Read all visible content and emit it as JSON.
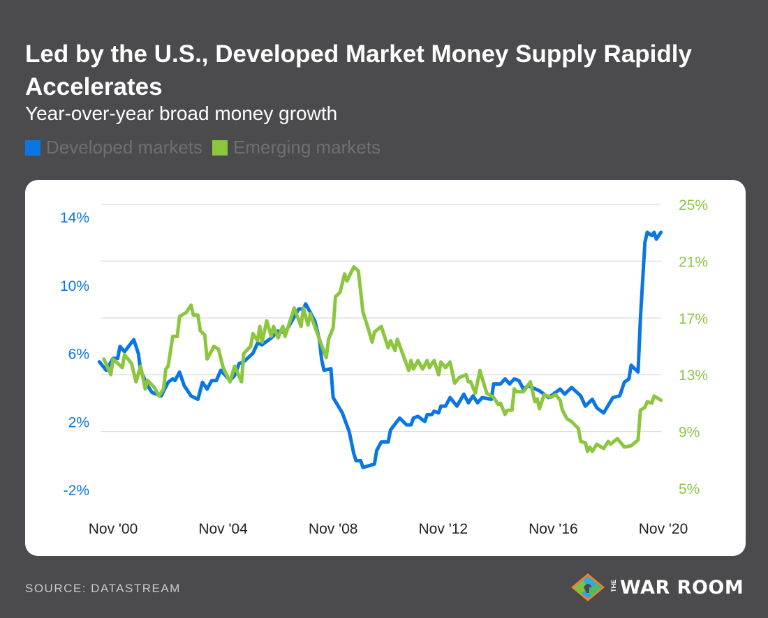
{
  "title": "Led by the U.S., Developed Market Money Supply Rapidly Accelerates",
  "subtitle": "Year-over-year broad money growth",
  "source": "SOURCE: DATASTREAM",
  "logo": {
    "the": "THE",
    "name": "WAR ROOM"
  },
  "colors": {
    "background": "#4b4b4d",
    "developed": "#0a76e3",
    "emerging": "#8cc63f",
    "grid": "#dddddd",
    "legend_text": "#6f6f70"
  },
  "chart_data": {
    "type": "line",
    "title": "Led by the U.S., Developed Market Money Supply Rapidly Accelerates",
    "subtitle": "Year-over-year broad money growth",
    "legend": {
      "placement": "top-left",
      "entries": [
        "Developed markets",
        "Emerging markets"
      ]
    },
    "grid": true,
    "x_ticks": [
      "Nov '00",
      "Nov '04",
      "Nov '08",
      "Nov '12",
      "Nov '16",
      "Nov '20"
    ],
    "x_range": [
      "2000-05",
      "2020-11"
    ],
    "y_left": {
      "ticks": [
        "14%",
        "10%",
        "6%",
        "2%",
        "-2%"
      ],
      "range": [
        -2,
        14
      ],
      "color": "#0a76e3"
    },
    "y_right": {
      "ticks": [
        "25%",
        "21%",
        "17%",
        "13%",
        "9%",
        "5%"
      ],
      "range": [
        5,
        25
      ],
      "color": "#8cc63f"
    },
    "series": [
      {
        "name": "Developed markets",
        "axis": "left",
        "color": "#0a76e3",
        "points": [
          [
            "2000-05",
            5.5
          ],
          [
            "2000-08",
            5.0
          ],
          [
            "2000-11",
            5.7
          ],
          [
            "2001-01",
            5.7
          ],
          [
            "2001-02",
            6.4
          ],
          [
            "2001-04",
            6.1
          ],
          [
            "2001-08",
            6.8
          ],
          [
            "2001-10",
            6.0
          ],
          [
            "2001-11",
            5.0
          ],
          [
            "2002-02",
            4.1
          ],
          [
            "2002-04",
            3.7
          ],
          [
            "2002-08",
            3.5
          ],
          [
            "2002-11",
            4.3
          ],
          [
            "2003-01",
            4.5
          ],
          [
            "2003-02",
            4.4
          ],
          [
            "2003-04",
            4.9
          ],
          [
            "2003-06",
            4.1
          ],
          [
            "2003-07",
            3.9
          ],
          [
            "2003-09",
            3.5
          ],
          [
            "2003-12",
            3.3
          ],
          [
            "2004-02",
            4.3
          ],
          [
            "2004-04",
            3.9
          ],
          [
            "2004-06",
            4.4
          ],
          [
            "2004-08",
            4.4
          ],
          [
            "2004-10",
            5.0
          ],
          [
            "2004-12",
            4.7
          ],
          [
            "2005-02",
            4.4
          ],
          [
            "2005-04",
            4.7
          ],
          [
            "2005-06",
            5.4
          ],
          [
            "2005-08",
            5.5
          ],
          [
            "2005-12",
            6.0
          ],
          [
            "2006-02",
            6.6
          ],
          [
            "2006-04",
            6.5
          ],
          [
            "2006-08",
            6.9
          ],
          [
            "2006-11",
            7.3
          ],
          [
            "2007-02",
            7.2
          ],
          [
            "2007-05",
            7.9
          ],
          [
            "2007-08",
            8.6
          ],
          [
            "2007-10",
            8.6
          ],
          [
            "2007-11",
            8.9
          ],
          [
            "2008-01",
            8.4
          ],
          [
            "2008-03",
            7.9
          ],
          [
            "2008-05",
            6.8
          ],
          [
            "2008-06",
            5.6
          ],
          [
            "2008-07",
            5.0
          ],
          [
            "2008-10",
            5.1
          ],
          [
            "2008-11",
            3.4
          ],
          [
            "2009-03",
            2.5
          ],
          [
            "2009-06",
            1.4
          ],
          [
            "2009-08",
            0.1
          ],
          [
            "2009-09",
            -0.3
          ],
          [
            "2009-11",
            -0.3
          ],
          [
            "2009-12",
            -0.7
          ],
          [
            "2010-05",
            -0.5
          ],
          [
            "2010-06",
            0.3
          ],
          [
            "2010-08",
            0.8
          ],
          [
            "2010-11",
            0.8
          ],
          [
            "2010-12",
            1.5
          ],
          [
            "2011-04",
            2.2
          ],
          [
            "2011-07",
            1.8
          ],
          [
            "2011-09",
            1.8
          ],
          [
            "2011-10",
            2.2
          ],
          [
            "2011-12",
            2.3
          ],
          [
            "2012-03",
            2.0
          ],
          [
            "2012-04",
            2.4
          ],
          [
            "2012-06",
            2.4
          ],
          [
            "2012-07",
            2.6
          ],
          [
            "2012-09",
            2.5
          ],
          [
            "2012-10",
            2.9
          ],
          [
            "2012-12",
            2.9
          ],
          [
            "2013-02",
            3.4
          ],
          [
            "2013-05",
            2.9
          ],
          [
            "2013-08",
            3.6
          ],
          [
            "2013-10",
            3.1
          ],
          [
            "2013-12",
            3.5
          ],
          [
            "2014-02",
            3.1
          ],
          [
            "2014-04",
            3.4
          ],
          [
            "2014-08",
            3.3
          ],
          [
            "2014-09",
            4.2
          ],
          [
            "2014-12",
            4.2
          ],
          [
            "2015-02",
            4.5
          ],
          [
            "2015-04",
            4.2
          ],
          [
            "2015-06",
            4.5
          ],
          [
            "2015-08",
            4.4
          ],
          [
            "2015-10",
            3.9
          ],
          [
            "2015-12",
            4.1
          ],
          [
            "2016-05",
            3.8
          ],
          [
            "2016-09",
            3.4
          ],
          [
            "2017-02",
            3.9
          ],
          [
            "2017-04",
            3.6
          ],
          [
            "2017-07",
            4.0
          ],
          [
            "2017-11",
            3.5
          ],
          [
            "2018-01",
            2.9
          ],
          [
            "2018-04",
            3.3
          ],
          [
            "2018-06",
            2.8
          ],
          [
            "2018-09",
            2.5
          ],
          [
            "2019-01",
            3.4
          ],
          [
            "2019-04",
            3.5
          ],
          [
            "2019-06",
            4.3
          ],
          [
            "2019-08",
            4.5
          ],
          [
            "2019-09",
            5.3
          ],
          [
            "2019-12",
            4.9
          ],
          [
            "2020-01",
            8.0
          ],
          [
            "2020-03",
            12.5
          ],
          [
            "2020-04",
            13.1
          ],
          [
            "2020-06",
            12.9
          ],
          [
            "2020-07",
            13.1
          ],
          [
            "2020-08",
            12.7
          ],
          [
            "2020-10",
            13.1
          ]
        ]
      },
      {
        "name": "Emerging markets",
        "axis": "right",
        "color": "#8cc63f",
        "points": [
          [
            "2000-07",
            14.1
          ],
          [
            "2000-10",
            13.0
          ],
          [
            "2000-11",
            14.1
          ],
          [
            "2001-03",
            13.5
          ],
          [
            "2001-04",
            14.4
          ],
          [
            "2001-07",
            13.8
          ],
          [
            "2001-09",
            12.5
          ],
          [
            "2001-11",
            13.6
          ],
          [
            "2002-01",
            12.0
          ],
          [
            "2002-02",
            12.6
          ],
          [
            "2002-05",
            12.1
          ],
          [
            "2002-07",
            11.5
          ],
          [
            "2002-09",
            12.0
          ],
          [
            "2002-10",
            13.4
          ],
          [
            "2002-11",
            13.6
          ],
          [
            "2003-01",
            15.7
          ],
          [
            "2003-03",
            15.7
          ],
          [
            "2003-04",
            17.1
          ],
          [
            "2003-07",
            17.4
          ],
          [
            "2003-09",
            17.9
          ],
          [
            "2003-10",
            17.2
          ],
          [
            "2003-12",
            17.2
          ],
          [
            "2004-01",
            16.1
          ],
          [
            "2004-03",
            15.8
          ],
          [
            "2004-04",
            14.1
          ],
          [
            "2004-07",
            15.0
          ],
          [
            "2004-09",
            14.8
          ],
          [
            "2004-11",
            13.5
          ],
          [
            "2005-02",
            12.5
          ],
          [
            "2005-04",
            13.6
          ],
          [
            "2005-07",
            12.5
          ],
          [
            "2005-08",
            14.5
          ],
          [
            "2005-11",
            15.0
          ],
          [
            "2005-12",
            15.9
          ],
          [
            "2006-02",
            15.4
          ],
          [
            "2006-03",
            16.4
          ],
          [
            "2006-04",
            15.3
          ],
          [
            "2006-06",
            16.8
          ],
          [
            "2006-08",
            15.7
          ],
          [
            "2006-09",
            16.4
          ],
          [
            "2006-11",
            15.6
          ],
          [
            "2007-01",
            16.4
          ],
          [
            "2007-02",
            15.7
          ],
          [
            "2007-06",
            17.7
          ],
          [
            "2007-09",
            16.4
          ],
          [
            "2007-10",
            17.7
          ],
          [
            "2007-12",
            16.5
          ],
          [
            "2008-01",
            17.3
          ],
          [
            "2008-03",
            16.4
          ],
          [
            "2008-05",
            15.5
          ],
          [
            "2008-08",
            14.2
          ],
          [
            "2008-09",
            15.5
          ],
          [
            "2008-11",
            16.3
          ],
          [
            "2008-12",
            18.5
          ],
          [
            "2009-02",
            18.8
          ],
          [
            "2009-04",
            20.1
          ],
          [
            "2009-05",
            19.6
          ],
          [
            "2009-08",
            20.6
          ],
          [
            "2009-10",
            20.3
          ],
          [
            "2009-12",
            17.4
          ],
          [
            "2010-02",
            16.4
          ],
          [
            "2010-04",
            15.3
          ],
          [
            "2010-05",
            16.0
          ],
          [
            "2010-08",
            16.4
          ],
          [
            "2010-11",
            14.9
          ],
          [
            "2010-12",
            15.4
          ],
          [
            "2011-02",
            14.7
          ],
          [
            "2011-03",
            15.5
          ],
          [
            "2011-08",
            13.3
          ],
          [
            "2011-09",
            14.0
          ],
          [
            "2011-10",
            13.4
          ],
          [
            "2011-12",
            14.0
          ],
          [
            "2012-02",
            13.4
          ],
          [
            "2012-04",
            14.0
          ],
          [
            "2012-05",
            13.5
          ],
          [
            "2012-07",
            14.0
          ],
          [
            "2012-09",
            13.0
          ],
          [
            "2012-10",
            13.9
          ],
          [
            "2012-12",
            13.5
          ],
          [
            "2013-02",
            13.9
          ],
          [
            "2013-04",
            12.4
          ],
          [
            "2013-06",
            12.8
          ],
          [
            "2013-09",
            13.0
          ],
          [
            "2013-10",
            12.5
          ],
          [
            "2013-11",
            12.5
          ],
          [
            "2014-01",
            11.7
          ],
          [
            "2014-03",
            13.3
          ],
          [
            "2014-06",
            11.7
          ],
          [
            "2014-09",
            11.4
          ],
          [
            "2014-11",
            10.9
          ],
          [
            "2014-12",
            11.0
          ],
          [
            "2015-02",
            10.2
          ],
          [
            "2015-03",
            10.5
          ],
          [
            "2015-05",
            10.5
          ],
          [
            "2015-06",
            12.0
          ],
          [
            "2015-07",
            11.8
          ],
          [
            "2015-10",
            11.8
          ],
          [
            "2016-01",
            12.5
          ],
          [
            "2016-03",
            11.1
          ],
          [
            "2016-04",
            11.3
          ],
          [
            "2016-05",
            10.6
          ],
          [
            "2016-07",
            11.6
          ],
          [
            "2016-10",
            11.4
          ],
          [
            "2016-12",
            11.6
          ],
          [
            "2017-02",
            11.2
          ],
          [
            "2017-03",
            10.5
          ],
          [
            "2017-05",
            9.9
          ],
          [
            "2017-07",
            9.7
          ],
          [
            "2017-10",
            9.2
          ],
          [
            "2017-11",
            8.3
          ],
          [
            "2018-01",
            8.2
          ],
          [
            "2018-02",
            7.6
          ],
          [
            "2018-03",
            7.9
          ],
          [
            "2018-04",
            7.6
          ],
          [
            "2018-06",
            8.1
          ],
          [
            "2018-09",
            7.8
          ],
          [
            "2018-11",
            8.3
          ],
          [
            "2018-12",
            8.1
          ],
          [
            "2019-03",
            8.5
          ],
          [
            "2019-06",
            7.9
          ],
          [
            "2019-09",
            8.0
          ],
          [
            "2019-12",
            8.4
          ],
          [
            "2020-01",
            10.5
          ],
          [
            "2020-03",
            10.7
          ],
          [
            "2020-04",
            11.1
          ],
          [
            "2020-06",
            11.0
          ],
          [
            "2020-07",
            11.5
          ],
          [
            "2020-10",
            11.2
          ]
        ]
      }
    ]
  }
}
